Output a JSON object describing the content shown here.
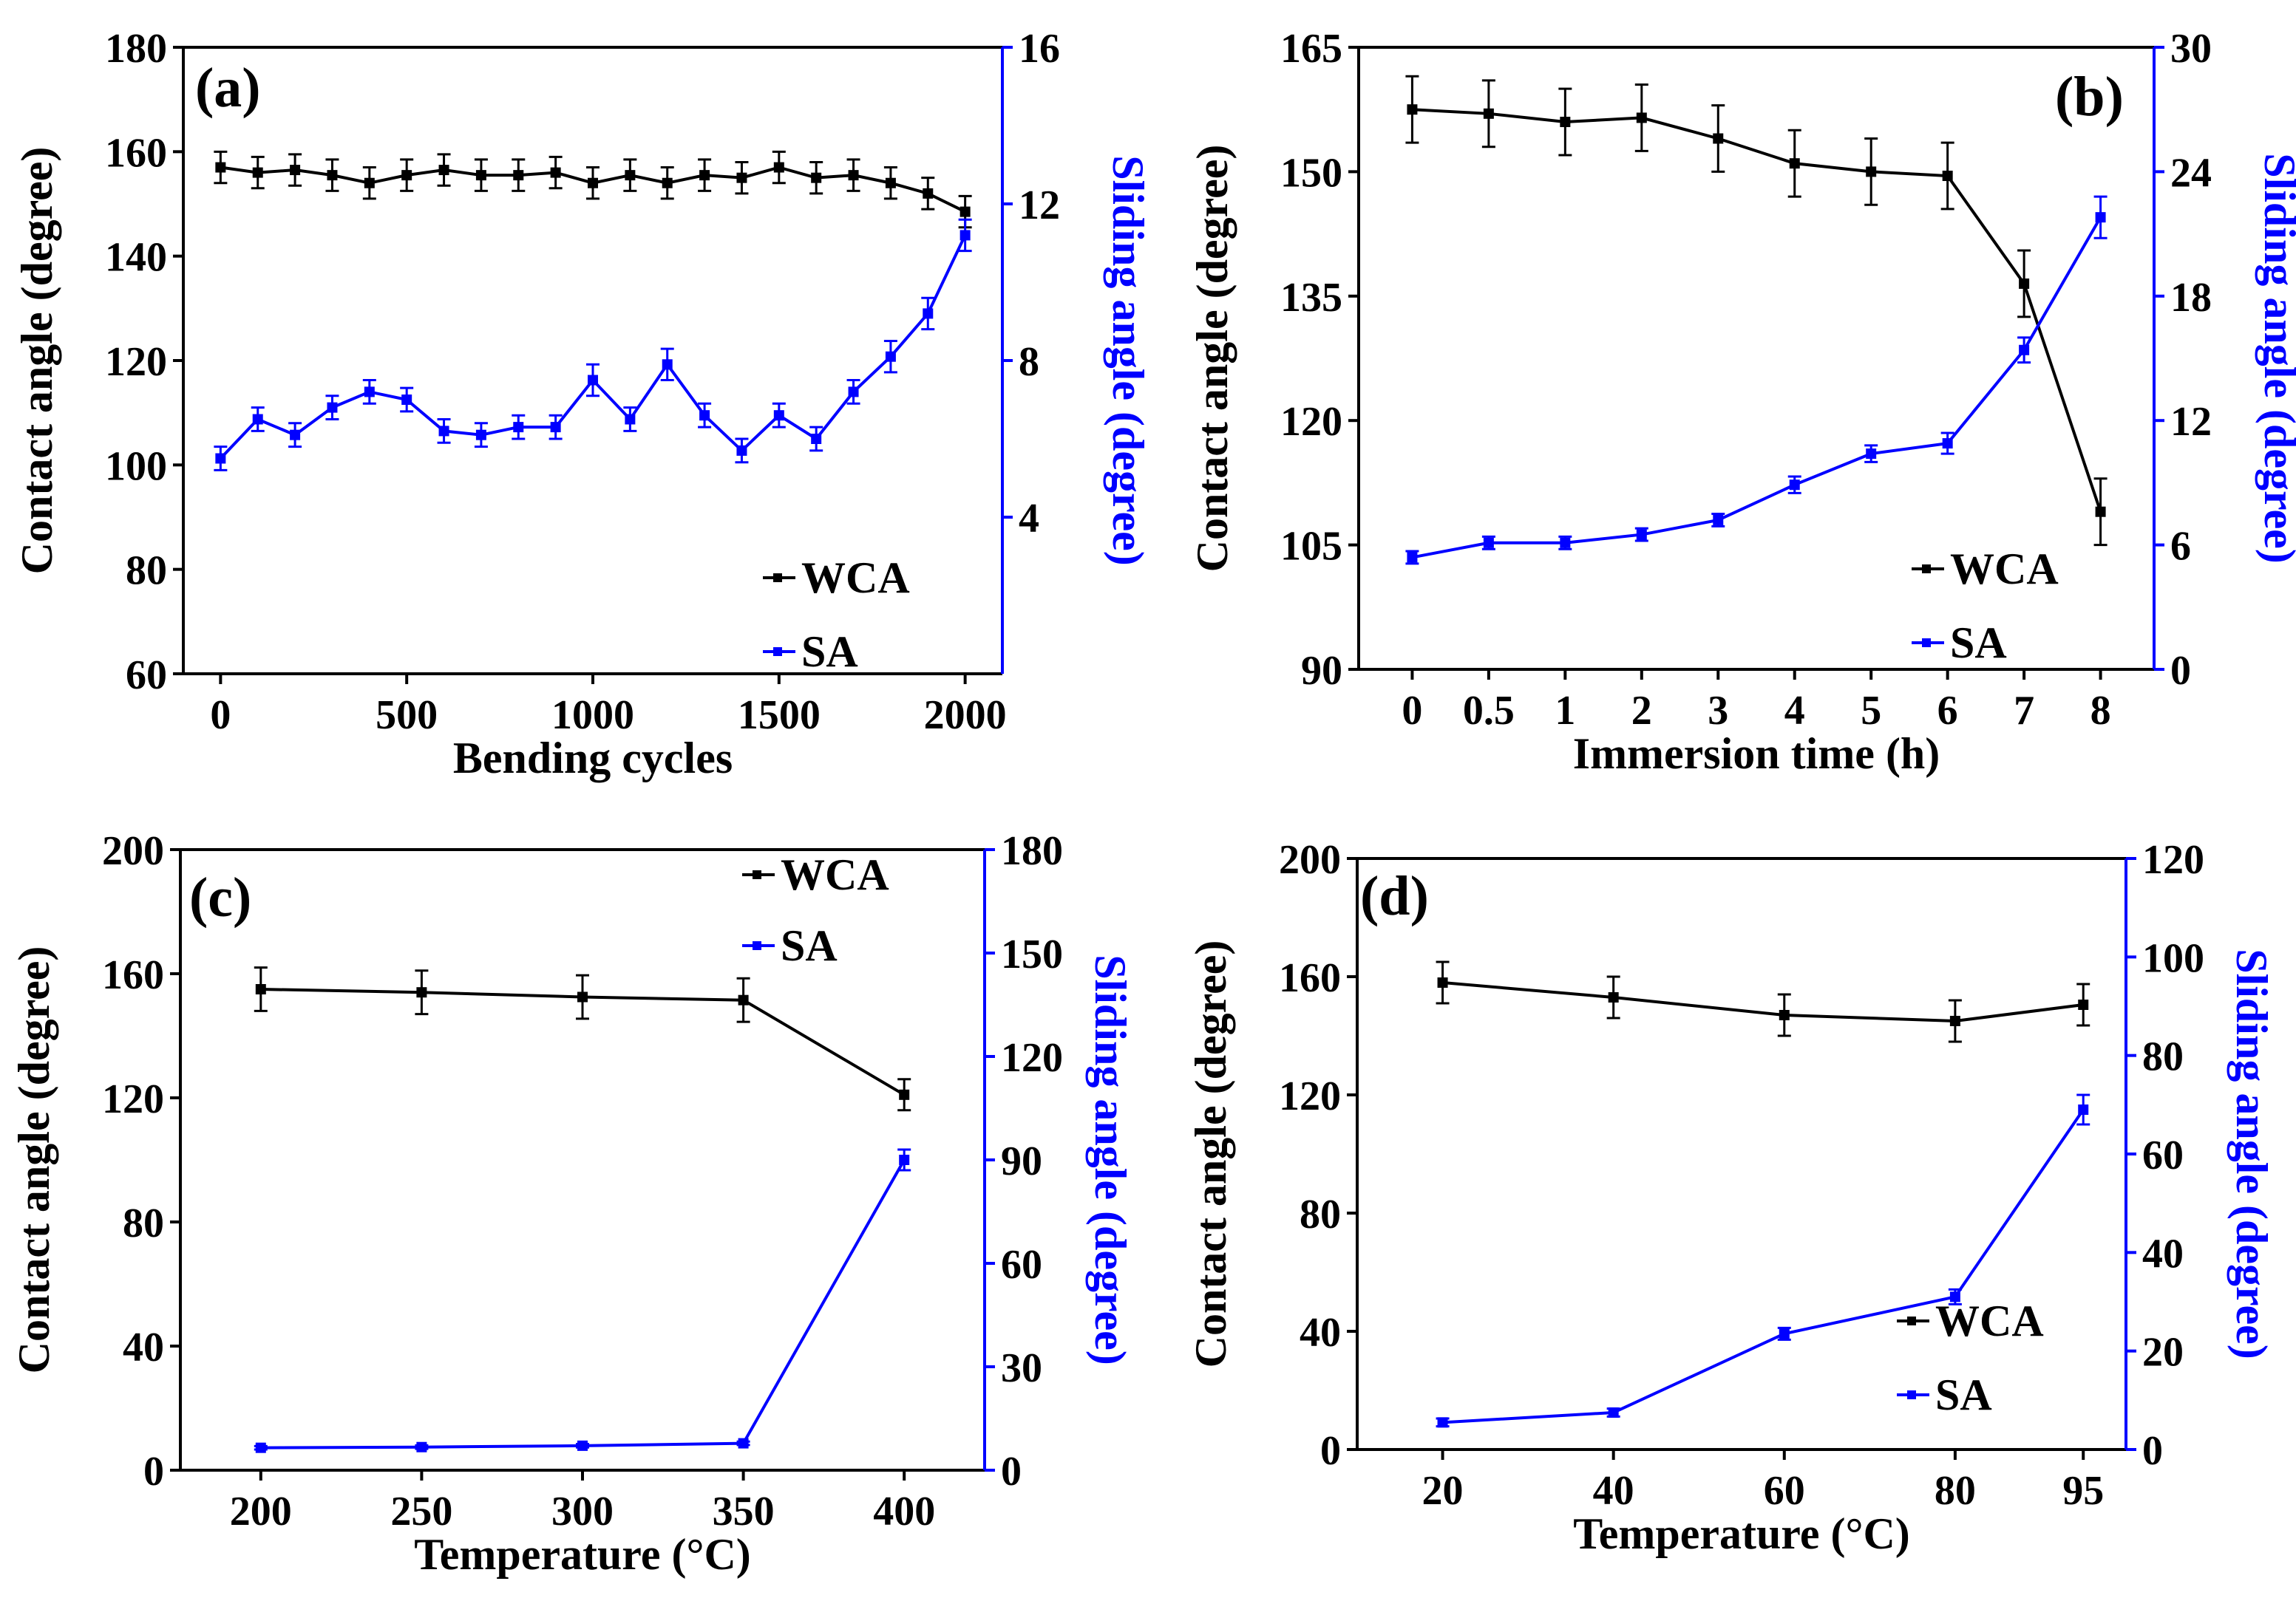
{
  "colors": {
    "wca": "#000000",
    "sa": "#0000ff"
  },
  "chart_data": [
    {
      "type": "line",
      "panel_label": "(a)",
      "xlabel": "Bending cycles",
      "ylabel": "Contact angle (degree)",
      "y2label": "Sliding angle (degree)",
      "x_scale": "linear",
      "xlim": [
        -100,
        2100
      ],
      "x_ticks": [
        0,
        500,
        1000,
        1500,
        2000
      ],
      "ylim": [
        60,
        180
      ],
      "y_ticks": [
        60,
        80,
        100,
        120,
        140,
        160,
        180
      ],
      "y2lim": [
        0,
        16
      ],
      "y2_ticks": [
        4,
        8,
        12,
        16
      ],
      "legend": {
        "position": "bottom-right",
        "entries": [
          "WCA",
          "SA"
        ]
      },
      "series": [
        {
          "name": "WCA",
          "axis": "left",
          "x": [
            0,
            100,
            200,
            300,
            400,
            500,
            600,
            700,
            800,
            900,
            1000,
            1100,
            1200,
            1300,
            1400,
            1500,
            1600,
            1700,
            1800,
            1900,
            2000
          ],
          "values": [
            157,
            156,
            156.5,
            155.5,
            154,
            155.5,
            156.5,
            155.5,
            155.5,
            156,
            154,
            155.5,
            154,
            155.5,
            155,
            157,
            155,
            155.5,
            154,
            152,
            148.5
          ],
          "errors": [
            3,
            3,
            3,
            3,
            3,
            3,
            3,
            3,
            3,
            3,
            3,
            3,
            3,
            3,
            3,
            3,
            3,
            3,
            3,
            3,
            3
          ]
        },
        {
          "name": "SA",
          "axis": "right",
          "x": [
            0,
            100,
            200,
            300,
            400,
            500,
            600,
            700,
            800,
            900,
            1000,
            1100,
            1200,
            1300,
            1400,
            1500,
            1600,
            1700,
            1800,
            1900,
            2000
          ],
          "values": [
            5.5,
            6.5,
            6.1,
            6.8,
            7.2,
            7.0,
            6.2,
            6.1,
            6.3,
            6.3,
            7.5,
            6.5,
            7.9,
            6.6,
            5.7,
            6.6,
            6.0,
            7.2,
            8.1,
            9.2,
            11.2
          ],
          "errors": [
            0.3,
            0.3,
            0.3,
            0.3,
            0.3,
            0.3,
            0.3,
            0.3,
            0.3,
            0.3,
            0.4,
            0.3,
            0.4,
            0.3,
            0.3,
            0.3,
            0.3,
            0.3,
            0.4,
            0.4,
            0.4
          ]
        }
      ]
    },
    {
      "type": "line",
      "panel_label": "(b)",
      "xlabel": "Immersion time (h)",
      "ylabel": "Contact angle (degree)",
      "y2label": "Sliding angle (degree)",
      "x_scale": "categorical",
      "categories": [
        "0",
        "0.5",
        "1",
        "2",
        "3",
        "4",
        "5",
        "6",
        "7",
        "8"
      ],
      "ylim": [
        90,
        165
      ],
      "y_ticks": [
        90,
        105,
        120,
        135,
        150,
        165
      ],
      "y2lim": [
        0,
        30
      ],
      "y2_ticks": [
        0,
        6,
        12,
        18,
        24,
        30
      ],
      "legend": {
        "position": "bottom-right",
        "entries": [
          "WCA",
          "SA"
        ]
      },
      "series": [
        {
          "name": "WCA",
          "axis": "left",
          "values": [
            157.5,
            157,
            156,
            156.5,
            154,
            151,
            150,
            149.5,
            136.5,
            109
          ],
          "errors": [
            4,
            4,
            4,
            4,
            4,
            4,
            4,
            4,
            4,
            4
          ]
        },
        {
          "name": "SA",
          "axis": "right",
          "values": [
            5.4,
            6.1,
            6.1,
            6.5,
            7.2,
            8.9,
            10.4,
            10.9,
            15.4,
            21.8
          ],
          "errors": [
            0.3,
            0.3,
            0.3,
            0.3,
            0.3,
            0.4,
            0.4,
            0.5,
            0.6,
            1.0
          ]
        }
      ]
    },
    {
      "type": "line",
      "panel_label": "(c)",
      "xlabel": "Temperature (°C)",
      "ylabel": "Contact angle (degree)",
      "y2label": "Sliding angle (degree)",
      "x_scale": "linear",
      "xlim": [
        175,
        425
      ],
      "x_ticks": [
        200,
        250,
        300,
        350,
        400
      ],
      "ylim": [
        0,
        200
      ],
      "y_ticks": [
        0,
        40,
        80,
        120,
        160,
        200
      ],
      "y2lim": [
        0,
        180
      ],
      "y2_ticks": [
        0,
        30,
        60,
        90,
        120,
        150,
        180
      ],
      "legend": {
        "position": "top-right",
        "entries": [
          "WCA",
          "SA"
        ]
      },
      "series": [
        {
          "name": "WCA",
          "axis": "left",
          "x": [
            200,
            250,
            300,
            350,
            400
          ],
          "values": [
            155,
            154,
            152.5,
            151.5,
            121
          ],
          "errors": [
            7,
            7,
            7,
            7,
            5
          ]
        },
        {
          "name": "SA",
          "axis": "right",
          "x": [
            200,
            250,
            300,
            350,
            400
          ],
          "values": [
            6.5,
            6.7,
            7.1,
            7.8,
            90
          ],
          "errors": [
            0.5,
            0.5,
            0.5,
            0.5,
            3
          ]
        }
      ]
    },
    {
      "type": "line",
      "panel_label": "(d)",
      "xlabel": "Temperature (°C)",
      "ylabel": "Contact angle (degree)",
      "y2label": "Sliding angle (degree)",
      "x_scale": "linear",
      "xlim": [
        10,
        100
      ],
      "x_ticks": [
        20,
        40,
        60,
        80,
        95
      ],
      "ylim": [
        0,
        200
      ],
      "y_ticks": [
        0,
        40,
        80,
        120,
        160,
        200
      ],
      "y2lim": [
        0,
        120
      ],
      "y2_ticks": [
        0,
        20,
        40,
        60,
        80,
        100,
        120
      ],
      "legend": {
        "position": "bottom-right",
        "entries": [
          "WCA",
          "SA"
        ]
      },
      "series": [
        {
          "name": "WCA",
          "axis": "left",
          "x": [
            20,
            40,
            60,
            80,
            95
          ],
          "values": [
            158,
            153,
            147,
            145,
            150.5
          ],
          "errors": [
            7,
            7,
            7,
            7,
            7
          ]
        },
        {
          "name": "SA",
          "axis": "right",
          "x": [
            20,
            40,
            60,
            80,
            95
          ],
          "values": [
            5.5,
            7.5,
            23.5,
            31,
            69
          ],
          "errors": [
            0.8,
            0.8,
            1.2,
            1.5,
            3
          ]
        }
      ]
    }
  ]
}
